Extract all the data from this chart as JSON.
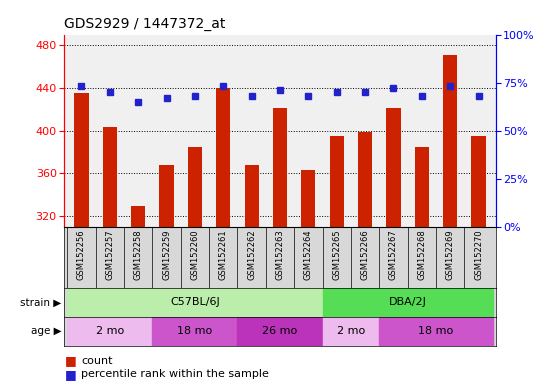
{
  "title": "GDS2929 / 1447372_at",
  "samples": [
    "GSM152256",
    "GSM152257",
    "GSM152258",
    "GSM152259",
    "GSM152260",
    "GSM152261",
    "GSM152262",
    "GSM152263",
    "GSM152264",
    "GSM152265",
    "GSM152266",
    "GSM152267",
    "GSM152268",
    "GSM152269",
    "GSM152270"
  ],
  "counts": [
    435,
    403,
    329,
    368,
    385,
    440,
    368,
    421,
    363,
    395,
    399,
    421,
    385,
    471,
    395
  ],
  "percentiles": [
    73,
    70,
    65,
    67,
    68,
    73,
    68,
    71,
    68,
    70,
    70,
    72,
    68,
    73,
    68
  ],
  "ylim_left": [
    310,
    490
  ],
  "ylim_right": [
    0,
    100
  ],
  "yticks_left": [
    320,
    360,
    400,
    440,
    480
  ],
  "yticks_right": [
    0,
    25,
    50,
    75,
    100
  ],
  "bar_color": "#cc2200",
  "dot_color": "#2222cc",
  "strain_groups": [
    {
      "label": "C57BL/6J",
      "start": 0,
      "end": 9,
      "color": "#bbeeaa"
    },
    {
      "label": "DBA/2J",
      "start": 9,
      "end": 15,
      "color": "#55dd55"
    }
  ],
  "age_groups": [
    {
      "label": "2 mo",
      "start": 0,
      "end": 3,
      "color": "#eebbee"
    },
    {
      "label": "18 mo",
      "start": 3,
      "end": 6,
      "color": "#cc55cc"
    },
    {
      "label": "26 mo",
      "start": 6,
      "end": 9,
      "color": "#bb33bb"
    },
    {
      "label": "2 mo",
      "start": 9,
      "end": 11,
      "color": "#eebbee"
    },
    {
      "label": "18 mo",
      "start": 11,
      "end": 15,
      "color": "#cc55cc"
    }
  ],
  "legend_count_label": "count",
  "legend_pct_label": "percentile rank within the sample"
}
